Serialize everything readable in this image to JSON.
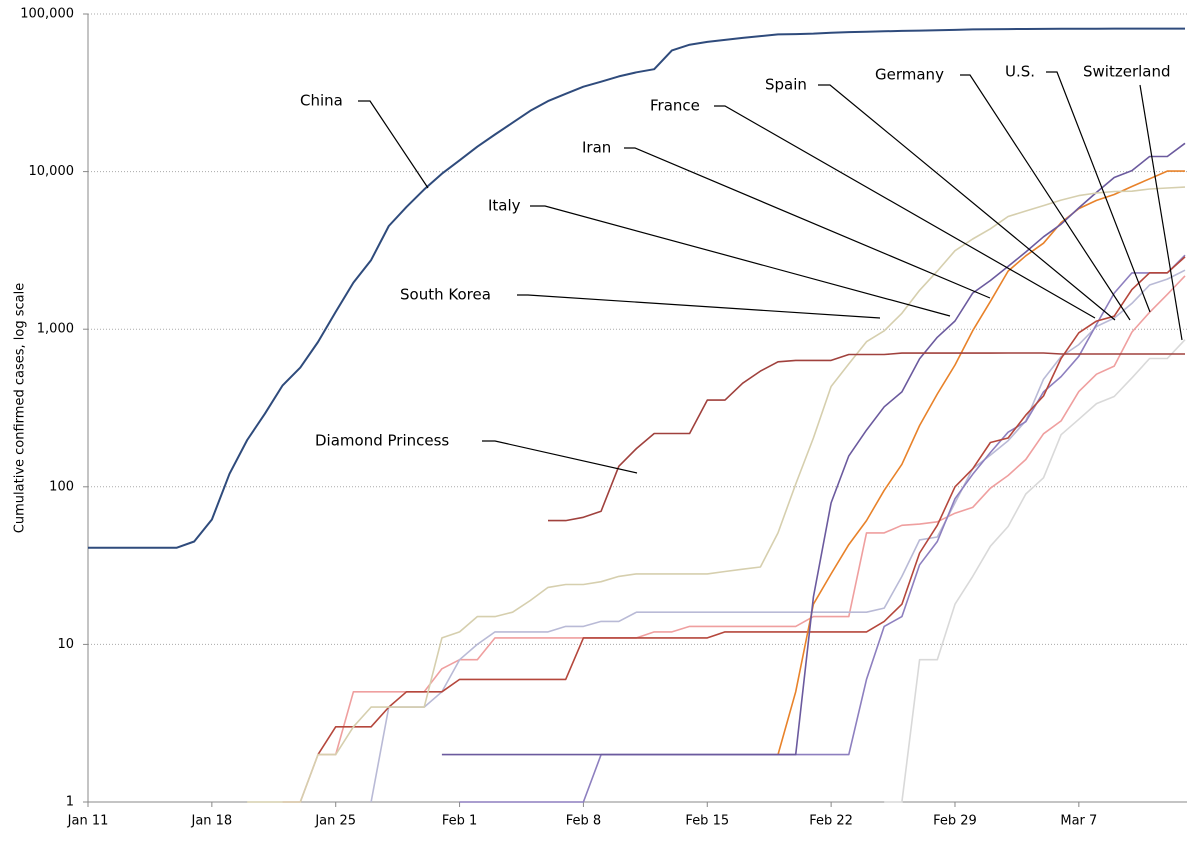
{
  "chart_data": {
    "type": "line",
    "y_label": "Cumulative confirmed cases, log scale",
    "log_scale_y": true,
    "grid": true,
    "categories": [
      "Jan 11",
      null,
      null,
      null,
      null,
      null,
      null,
      "Jan 18",
      null,
      null,
      null,
      null,
      null,
      null,
      "Jan 25",
      null,
      null,
      null,
      null,
      null,
      null,
      "Feb 1",
      null,
      null,
      null,
      null,
      null,
      null,
      "Feb 8",
      null,
      null,
      null,
      null,
      null,
      null,
      "Feb 15",
      null,
      null,
      null,
      null,
      null,
      null,
      "Feb 22",
      null,
      null,
      null,
      null,
      null,
      null,
      "Feb 29",
      null,
      null,
      null,
      null,
      null,
      null,
      "Mar 7",
      null,
      null,
      null,
      null,
      null,
      null
    ],
    "ylim": [
      1,
      100000
    ],
    "yticks": [
      1,
      10,
      100,
      {
        "value": 1000,
        "label": "1,000"
      },
      {
        "value": 10000,
        "label": "10,000"
      },
      {
        "value": 100000,
        "label": "100,000"
      }
    ],
    "series": [
      {
        "name": "China",
        "color": "#2f4b7c",
        "values": [
          41,
          41,
          41,
          41,
          41,
          41,
          45,
          62,
          121,
          198,
          291,
          440,
          571,
          830,
          1287,
          1975,
          2744,
          4515,
          5974,
          7711,
          9692,
          11791,
          14380,
          17205,
          20438,
          24324,
          28018,
          31161,
          34546,
          37198,
          40171,
          42638,
          44653,
          58761,
          63851,
          66492,
          68500,
          70548,
          72436,
          74185,
          74576,
          75077,
          76119,
          76767,
          77150,
          77658,
          78064,
          78497,
          78824,
          79251,
          79824,
          80026,
          80151,
          80270,
          80409,
          80552,
          80651,
          80695,
          80735,
          80754,
          80778,
          80793,
          80813
        ]
      },
      {
        "name": "Diamond Princess",
        "color": "#a0413d",
        "values": [
          null,
          null,
          null,
          null,
          null,
          null,
          null,
          null,
          null,
          null,
          null,
          null,
          null,
          null,
          null,
          null,
          null,
          null,
          null,
          null,
          null,
          null,
          null,
          null,
          null,
          null,
          61,
          61,
          64,
          70,
          135,
          175,
          218,
          218,
          218,
          355,
          355,
          454,
          542,
          621,
          634,
          634,
          634,
          691,
          691,
          691,
          705,
          705,
          705,
          705,
          705,
          705,
          706,
          706,
          706,
          696,
          696,
          696,
          696,
          696,
          696,
          696,
          696
        ]
      },
      {
        "name": "South Korea",
        "color": "#d6cfae",
        "values": [
          null,
          null,
          null,
          null,
          null,
          null,
          null,
          null,
          null,
          1,
          1,
          1,
          1,
          2,
          2,
          3,
          4,
          4,
          4,
          4,
          11,
          12,
          15,
          15,
          16,
          19,
          23,
          24,
          24,
          25,
          27,
          28,
          28,
          28,
          28,
          28,
          29,
          30,
          31,
          51,
          104,
          204,
          433,
          602,
          833,
          977,
          1261,
          1766,
          2337,
          3150,
          3736,
          4335,
          5186,
          5621,
          6088,
          6593,
          7041,
          7314,
          7478,
          7513,
          7755,
          7869,
          7979
        ]
      },
      {
        "name": "Italy",
        "color": "#6b5a9e",
        "values": [
          null,
          null,
          null,
          null,
          null,
          null,
          null,
          null,
          null,
          null,
          null,
          null,
          null,
          null,
          null,
          null,
          null,
          null,
          null,
          null,
          2,
          2,
          2,
          2,
          2,
          2,
          2,
          2,
          2,
          2,
          2,
          2,
          2,
          2,
          2,
          2,
          2,
          2,
          2,
          2,
          2,
          20,
          79,
          157,
          229,
          322,
          400,
          650,
          888,
          1128,
          1694,
          2036,
          2502,
          3089,
          3858,
          4636,
          5883,
          7375,
          9172,
          10149,
          12462,
          12462,
          15113
        ]
      },
      {
        "name": "Iran",
        "color": "#e8822a",
        "values": [
          null,
          null,
          null,
          null,
          null,
          null,
          null,
          null,
          null,
          null,
          null,
          null,
          null,
          null,
          null,
          null,
          null,
          null,
          null,
          null,
          null,
          null,
          null,
          null,
          null,
          null,
          null,
          null,
          null,
          null,
          null,
          null,
          null,
          null,
          null,
          null,
          null,
          null,
          null,
          2,
          5,
          18,
          28,
          43,
          61,
          95,
          139,
          245,
          388,
          593,
          978,
          1501,
          2336,
          2922,
          3513,
          4747,
          5823,
          6566,
          7161,
          8042,
          9000,
          10075,
          10075
        ]
      },
      {
        "name": "France",
        "color": "#b5473c",
        "values": [
          null,
          null,
          null,
          null,
          null,
          null,
          null,
          null,
          null,
          null,
          null,
          null,
          null,
          2,
          3,
          3,
          3,
          4,
          5,
          5,
          5,
          6,
          6,
          6,
          6,
          6,
          6,
          6,
          11,
          11,
          11,
          11,
          11,
          11,
          11,
          11,
          12,
          12,
          12,
          12,
          12,
          12,
          12,
          12,
          12,
          14,
          18,
          38,
          57,
          100,
          130,
          191,
          204,
          285,
          377,
          653,
          949,
          1126,
          1209,
          1784,
          2281,
          2281,
          2876
        ]
      },
      {
        "name": "Spain",
        "color": "#8d7fbf",
        "values": [
          null,
          null,
          null,
          null,
          null,
          null,
          null,
          null,
          null,
          null,
          null,
          null,
          null,
          null,
          null,
          null,
          null,
          null,
          null,
          null,
          null,
          1,
          1,
          1,
          1,
          1,
          1,
          1,
          1,
          2,
          2,
          2,
          2,
          2,
          2,
          2,
          2,
          2,
          2,
          2,
          2,
          2,
          2,
          2,
          6,
          13,
          15,
          32,
          45,
          84,
          120,
          165,
          222,
          259,
          400,
          500,
          673,
          1073,
          1695,
          2277,
          2277,
          2277,
          2950
        ]
      },
      {
        "name": "Germany",
        "color": "#b9bad6",
        "values": [
          null,
          null,
          null,
          null,
          null,
          null,
          null,
          null,
          null,
          null,
          null,
          null,
          null,
          null,
          null,
          null,
          1,
          4,
          4,
          4,
          5,
          8,
          10,
          12,
          12,
          12,
          12,
          13,
          13,
          14,
          14,
          16,
          16,
          16,
          16,
          16,
          16,
          16,
          16,
          16,
          16,
          16,
          16,
          16,
          16,
          17,
          27,
          46,
          48,
          79,
          130,
          159,
          196,
          262,
          482,
          670,
          799,
          1040,
          1176,
          1457,
          1908,
          2078,
          2369
        ]
      },
      {
        "name": "U.S.",
        "color": "#ef9f9f",
        "values": [
          null,
          null,
          null,
          null,
          null,
          null,
          null,
          null,
          null,
          null,
          null,
          1,
          1,
          2,
          2,
          5,
          5,
          5,
          5,
          5,
          7,
          8,
          8,
          11,
          11,
          11,
          11,
          11,
          11,
          11,
          11,
          11,
          12,
          12,
          13,
          13,
          13,
          13,
          13,
          13,
          13,
          15,
          15,
          15,
          51,
          51,
          57,
          58,
          60,
          68,
          74,
          98,
          118,
          149,
          217,
          262,
          402,
          518,
          583,
          959,
          1281,
          1663,
          2179
        ]
      },
      {
        "name": "Switzerland",
        "color": "#d9d9d9",
        "values": [
          null,
          null,
          null,
          null,
          null,
          null,
          null,
          null,
          null,
          null,
          null,
          null,
          null,
          null,
          null,
          null,
          null,
          null,
          null,
          null,
          null,
          null,
          null,
          null,
          null,
          null,
          null,
          null,
          null,
          null,
          null,
          null,
          null,
          null,
          null,
          null,
          null,
          null,
          null,
          null,
          null,
          null,
          null,
          null,
          null,
          1,
          1,
          8,
          8,
          18,
          27,
          42,
          56,
          90,
          114,
          214,
          268,
          337,
          374,
          491,
          652,
          652,
          858
        ]
      }
    ]
  }
}
